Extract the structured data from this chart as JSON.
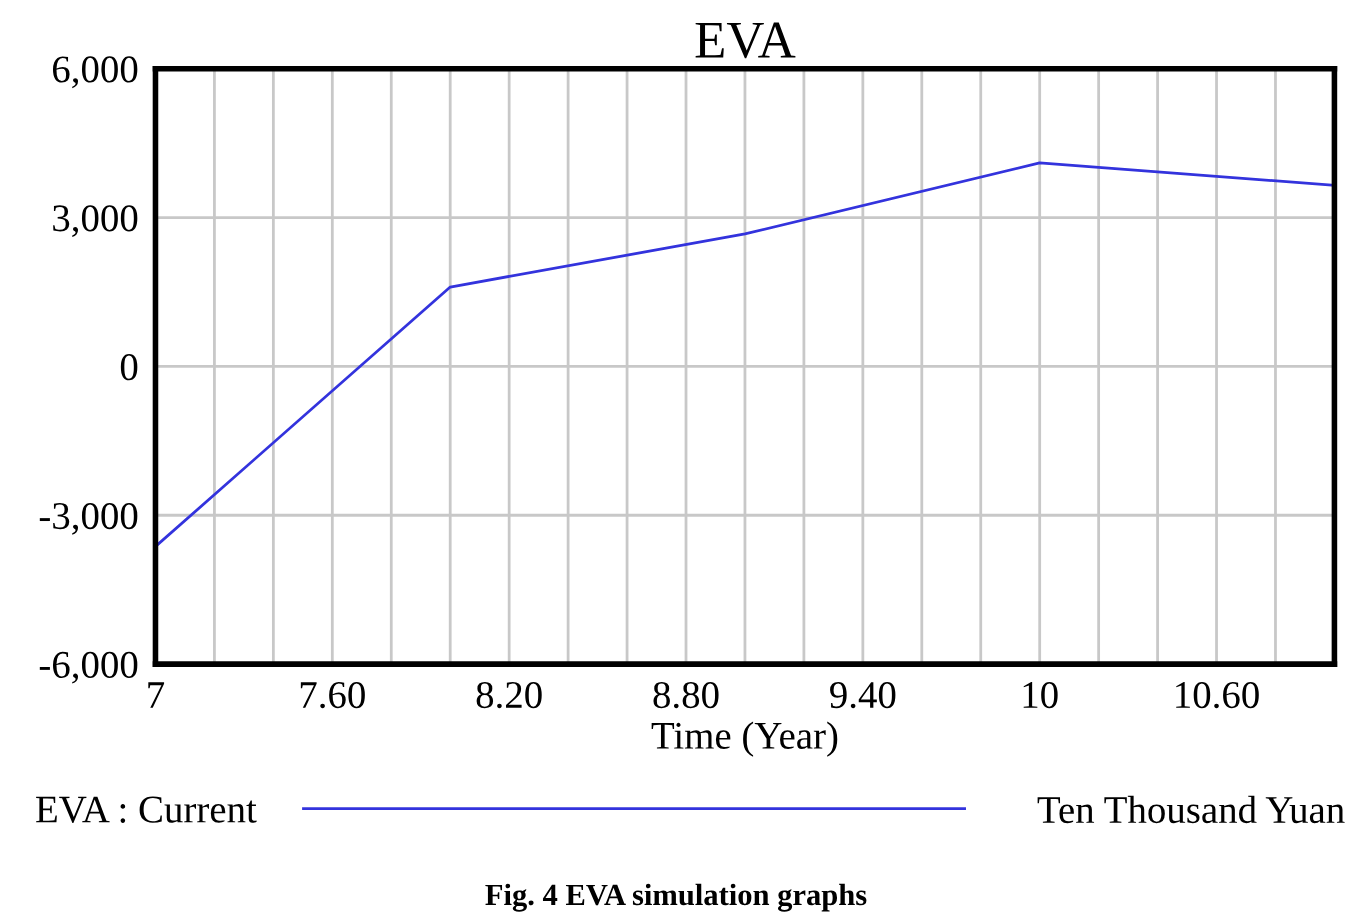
{
  "chart_data": {
    "type": "line",
    "title": "EVA",
    "xlabel": "Time (Year)",
    "x": [
      7,
      8,
      9,
      10,
      11
    ],
    "series": [
      {
        "name": "EVA : Current",
        "color": "#3333dd",
        "values": [
          -3630,
          1600,
          2670,
          4100,
          3650
        ]
      }
    ],
    "xlim": [
      7,
      11
    ],
    "xticks": [
      7,
      {
        "value": 7.2,
        "label": null
      },
      {
        "value": 7.4,
        "label": null
      },
      {
        "value": 7.6,
        "label": "7.60"
      },
      {
        "value": 7.8,
        "label": null
      },
      {
        "value": 8.0,
        "label": null
      },
      {
        "value": 8.2,
        "label": "8.20"
      },
      {
        "value": 8.4,
        "label": null
      },
      {
        "value": 8.6,
        "label": null
      },
      {
        "value": 8.8,
        "label": "8.80"
      },
      {
        "value": 9.0,
        "label": null
      },
      {
        "value": 9.2,
        "label": null
      },
      {
        "value": 9.4,
        "label": "9.40"
      },
      {
        "value": 9.6,
        "label": null
      },
      {
        "value": 9.8,
        "label": null
      },
      10,
      {
        "value": 10.2,
        "label": null
      },
      {
        "value": 10.4,
        "label": null
      },
      {
        "value": 10.6,
        "label": "10.60"
      },
      {
        "value": 10.8,
        "label": null
      }
    ],
    "ylim": [
      -6000,
      6000
    ],
    "yticks": [
      {
        "value": -6000,
        "label": "-6,000"
      },
      {
        "value": -3000,
        "label": "-3,000"
      },
      0,
      {
        "value": 3000,
        "label": "3,000"
      },
      {
        "value": 6000,
        "label": "6,000"
      }
    ],
    "grid": true,
    "legend": "bottom",
    "marker": "none",
    "line_style": "solid",
    "annotations": [
      "Ten Thousand Yuan",
      "Fig. 4 EVA simulation graphs"
    ]
  }
}
